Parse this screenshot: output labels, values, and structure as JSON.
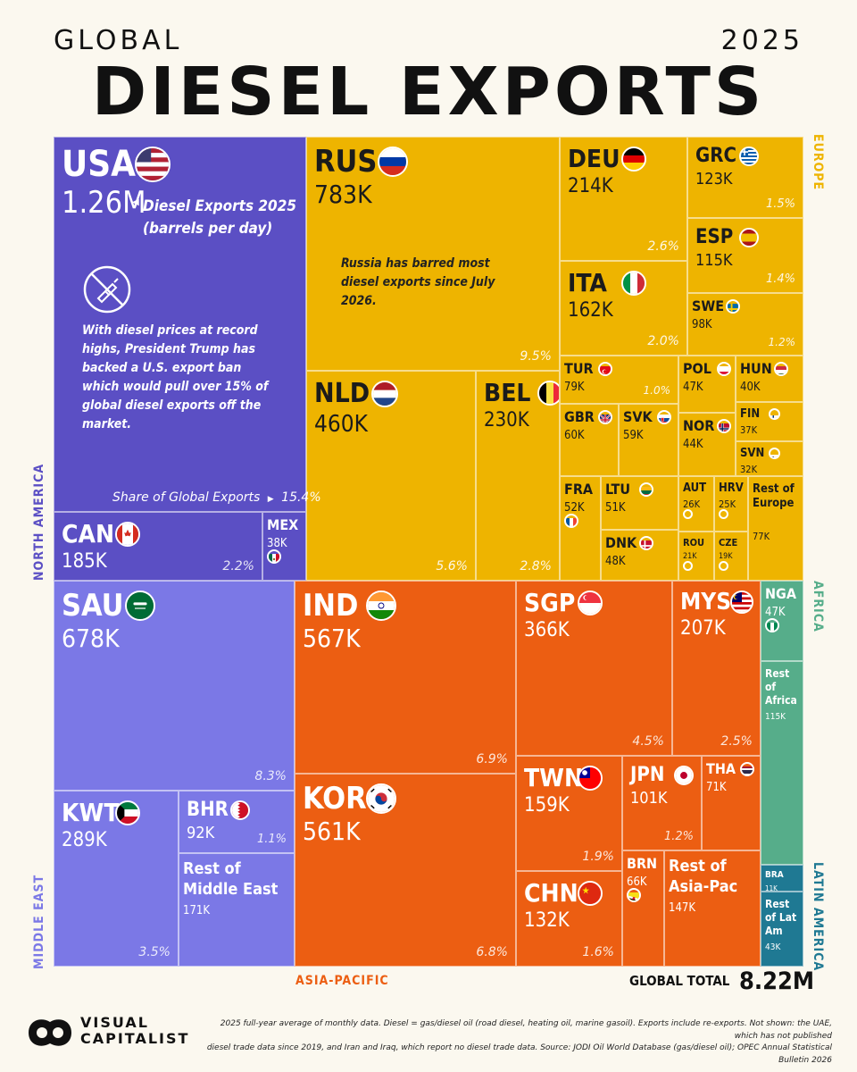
{
  "header": {
    "kicker": "GLOBAL",
    "year": "2025",
    "title": "DIESEL EXPORTS"
  },
  "chart_data": {
    "type": "treemap",
    "title": "Global Diesel Exports 2025",
    "unit": "barrels per day",
    "global_total_label": "GLOBAL TOTAL",
    "global_total": "8.22M",
    "usa_callout": {
      "label_line1": "Diesel Exports 2025",
      "label_line2": "(barrels per day)",
      "note": "With diesel prices at record highs, President Trump has backed a U.S. export ban which would pull over 15% of global diesel exports off the market.",
      "share_label": "Share of Global Exports",
      "share_value": "15.4%"
    },
    "russia_note": "Russia has barred most diesel exports since July 2026.",
    "regions": [
      {
        "name": "NORTH AMERICA",
        "color": "#5b4fc4"
      },
      {
        "name": "EUROPE",
        "color": "#eeb400"
      },
      {
        "name": "MIDDLE EAST",
        "color": "#7b78e6"
      },
      {
        "name": "ASIA-PACIFIC",
        "color": "#ec5e12"
      },
      {
        "name": "AFRICA",
        "color": "#56ad8a"
      },
      {
        "name": "LATIN AMERICA",
        "color": "#1f7993"
      }
    ],
    "entries": [
      {
        "code": "USA",
        "value": "1.26M",
        "region": "NORTH AMERICA",
        "flag": "us"
      },
      {
        "code": "CAN",
        "value": "185K",
        "pct": "2.2%",
        "region": "NORTH AMERICA",
        "flag": "ca"
      },
      {
        "code": "MEX",
        "value": "38K",
        "region": "NORTH AMERICA",
        "flag": "mx"
      },
      {
        "code": "RUS",
        "value": "783K",
        "pct": "9.5%",
        "region": "EUROPE",
        "flag": "ru"
      },
      {
        "code": "NLD",
        "value": "460K",
        "pct": "5.6%",
        "region": "EUROPE",
        "flag": "nl"
      },
      {
        "code": "BEL",
        "value": "230K",
        "pct": "2.8%",
        "region": "EUROPE",
        "flag": "be"
      },
      {
        "code": "DEU",
        "value": "214K",
        "pct": "2.6%",
        "region": "EUROPE",
        "flag": "de"
      },
      {
        "code": "ITA",
        "value": "162K",
        "pct": "2.0%",
        "region": "EUROPE",
        "flag": "it"
      },
      {
        "code": "GRC",
        "value": "123K",
        "pct": "1.5%",
        "region": "EUROPE",
        "flag": "gr"
      },
      {
        "code": "ESP",
        "value": "115K",
        "pct": "1.4%",
        "region": "EUROPE",
        "flag": "es"
      },
      {
        "code": "SWE",
        "value": "98K",
        "pct": "1.2%",
        "region": "EUROPE",
        "flag": "se"
      },
      {
        "code": "TUR",
        "value": "79K",
        "pct": "1.0%",
        "region": "EUROPE",
        "flag": "tr"
      },
      {
        "code": "GBR",
        "value": "60K",
        "region": "EUROPE",
        "flag": "gb"
      },
      {
        "code": "SVK",
        "value": "59K",
        "region": "EUROPE",
        "flag": "sk"
      },
      {
        "code": "FRA",
        "value": "52K",
        "region": "EUROPE",
        "flag": "fr"
      },
      {
        "code": "LTU",
        "value": "51K",
        "region": "EUROPE",
        "flag": "lt"
      },
      {
        "code": "DNK",
        "value": "48K",
        "region": "EUROPE",
        "flag": "dk"
      },
      {
        "code": "POL",
        "value": "47K",
        "region": "EUROPE",
        "flag": "pl"
      },
      {
        "code": "HUN",
        "value": "40K",
        "region": "EUROPE",
        "flag": "hu"
      },
      {
        "code": "FIN",
        "value": "37K",
        "region": "EUROPE",
        "flag": "fi"
      },
      {
        "code": "NOR",
        "value": "44K",
        "region": "EUROPE",
        "flag": "no"
      },
      {
        "code": "SVN",
        "value": "32K",
        "region": "EUROPE",
        "flag": "si"
      },
      {
        "code": "AUT",
        "value": "26K",
        "region": "EUROPE",
        "flag": "at"
      },
      {
        "code": "HRV",
        "value": "25K",
        "region": "EUROPE",
        "flag": "hr"
      },
      {
        "code": "ROU",
        "value": "21K",
        "region": "EUROPE",
        "flag": "ro"
      },
      {
        "code": "CZE",
        "value": "19K",
        "region": "EUROPE",
        "flag": "cz"
      },
      {
        "code": "Rest of Europe",
        "value": "77K",
        "region": "EUROPE"
      },
      {
        "code": "SAU",
        "value": "678K",
        "pct": "8.3%",
        "region": "MIDDLE EAST",
        "flag": "sa"
      },
      {
        "code": "KWT",
        "value": "289K",
        "pct": "3.5%",
        "region": "MIDDLE EAST",
        "flag": "kw"
      },
      {
        "code": "BHR",
        "value": "92K",
        "pct": "1.1%",
        "region": "MIDDLE EAST",
        "flag": "bh"
      },
      {
        "code": "Rest of Middle East",
        "value": "171K",
        "region": "MIDDLE EAST"
      },
      {
        "code": "IND",
        "value": "567K",
        "pct": "6.9%",
        "region": "ASIA-PACIFIC",
        "flag": "in"
      },
      {
        "code": "KOR",
        "value": "561K",
        "pct": "6.8%",
        "region": "ASIA-PACIFIC",
        "flag": "kr"
      },
      {
        "code": "SGP",
        "value": "366K",
        "pct": "4.5%",
        "region": "ASIA-PACIFIC",
        "flag": "sg"
      },
      {
        "code": "MYS",
        "value": "207K",
        "pct": "2.5%",
        "region": "ASIA-PACIFIC",
        "flag": "my"
      },
      {
        "code": "TWN",
        "value": "159K",
        "pct": "1.9%",
        "region": "ASIA-PACIFIC",
        "flag": "tw"
      },
      {
        "code": "JPN",
        "value": "101K",
        "pct": "1.2%",
        "region": "ASIA-PACIFIC",
        "flag": "jp"
      },
      {
        "code": "THA",
        "value": "71K",
        "region": "ASIA-PACIFIC",
        "flag": "th"
      },
      {
        "code": "CHN",
        "value": "132K",
        "pct": "1.6%",
        "region": "ASIA-PACIFIC",
        "flag": "cn"
      },
      {
        "code": "BRN",
        "value": "66K",
        "region": "ASIA-PACIFIC",
        "flag": "bn"
      },
      {
        "code": "Rest of Asia-Pac",
        "value": "147K",
        "region": "ASIA-PACIFIC"
      },
      {
        "code": "NGA",
        "value": "47K",
        "region": "AFRICA",
        "flag": "ng"
      },
      {
        "code": "Rest of Africa",
        "value": "115K",
        "region": "AFRICA"
      },
      {
        "code": "BRA",
        "value": "11K",
        "region": "LATIN AMERICA",
        "flag": "br"
      },
      {
        "code": "Rest of Lat Am",
        "value": "43K",
        "region": "LATIN AMERICA"
      }
    ]
  },
  "footer": {
    "brand_line1": "VISUAL",
    "brand_line2": "CAPITALIST",
    "note_line1": "2025 full-year average of monthly data. Diesel = gas/diesel oil (road diesel, heating oil, marine gasoil). Exports include re-exports. Not shown: the UAE, which has not published",
    "note_line2": "diesel trade data since 2019, and Iran and Iraq, which report no diesel trade data. Source: JODI Oil World Database (gas/diesel oil); OPEC Annual Statistical Bulletin 2026"
  }
}
